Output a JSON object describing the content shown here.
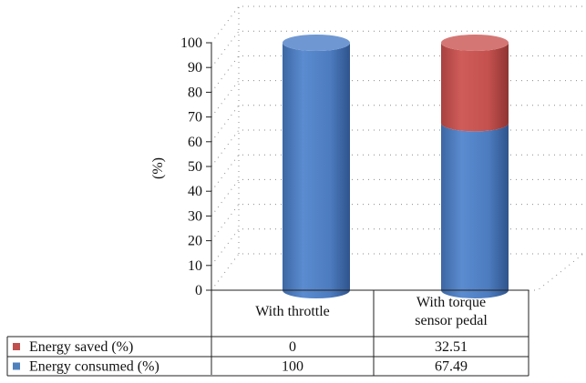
{
  "chart_data": {
    "type": "bar",
    "stacked": true,
    "style": "3d-cylinder",
    "categories": [
      "With throttle",
      "With torque sensor pedal"
    ],
    "series": [
      {
        "name": "Energy consumed (%)",
        "values": [
          100,
          67.49
        ],
        "color": "#4f81bd"
      },
      {
        "name": "Energy saved (%)",
        "values": [
          0,
          32.51
        ],
        "color": "#c0504d"
      }
    ],
    "table_values": [
      [
        "0",
        "32.51"
      ],
      [
        "100",
        "67.49"
      ]
    ],
    "title": "",
    "xlabel": "",
    "ylabel": "(%)",
    "ylim": [
      0,
      100
    ],
    "yticks": [
      0,
      10,
      20,
      30,
      40,
      50,
      60,
      70,
      80,
      90,
      100
    ],
    "grid": true,
    "legend": "data-table-left"
  }
}
